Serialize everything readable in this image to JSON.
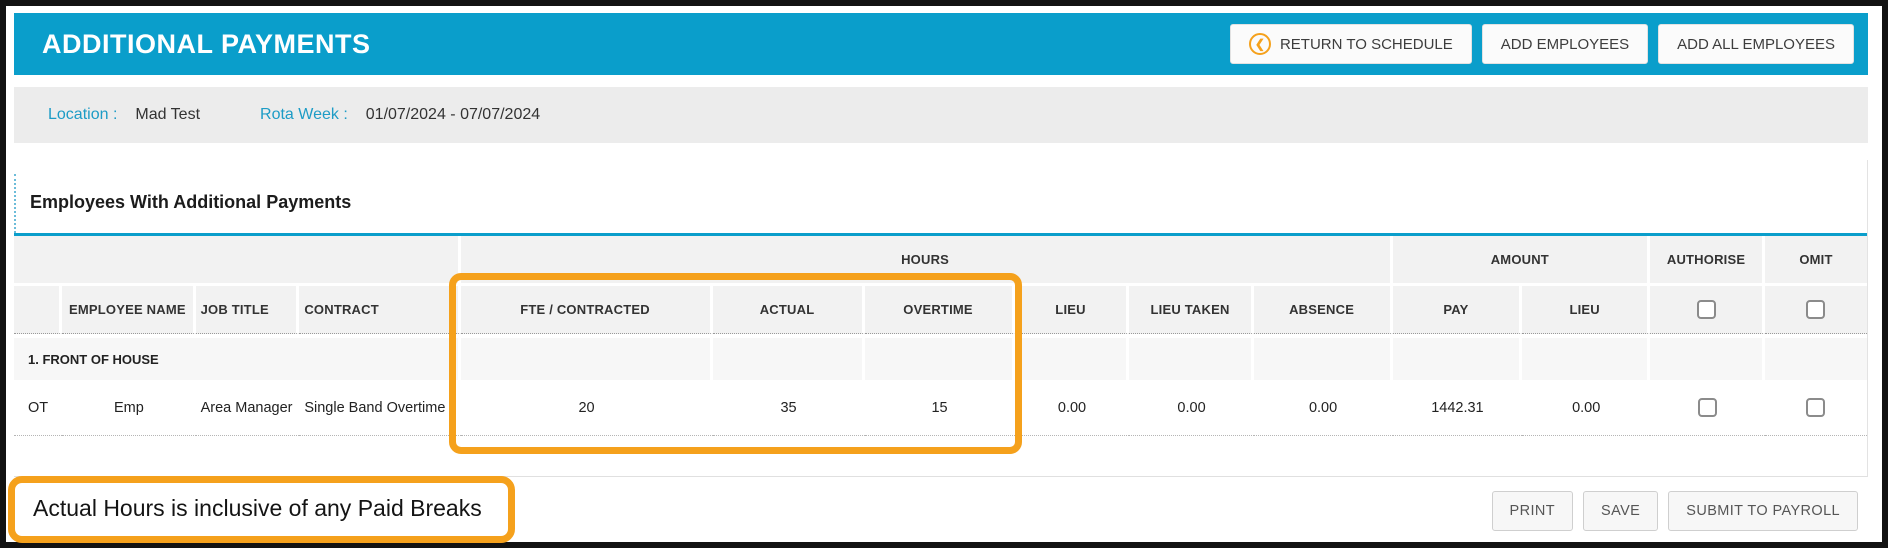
{
  "header": {
    "title": "ADDITIONAL PAYMENTS",
    "return_icon": "❮",
    "buttons": {
      "return_to_schedule": "RETURN TO SCHEDULE",
      "add_employees": "ADD EMPLOYEES",
      "add_all_employees": "ADD ALL EMPLOYEES"
    }
  },
  "meta": {
    "location_label": "Location :",
    "location_value": "Mad Test",
    "rota_week_label": "Rota Week :",
    "rota_week_value": "01/07/2024 - 07/07/2024"
  },
  "section": {
    "title": "Employees With Additional Payments"
  },
  "table": {
    "groups": {
      "hours": "HOURS",
      "amount": "AMOUNT",
      "authorise": "AUTHORISE",
      "omit": "OMIT"
    },
    "columns": [
      "EMPLOYEE NAME",
      "JOB TITLE",
      "CONTRACT",
      "FTE / CONTRACTED",
      "ACTUAL",
      "OVERTIME",
      "LIEU",
      "LIEU TAKEN",
      "ABSENCE",
      "PAY",
      "LIEU"
    ],
    "group_row_label": "1. FRONT OF HOUSE",
    "rows": [
      {
        "tag": "OT",
        "employee_name": "Emp",
        "job_title": "Area Manager",
        "contract": "Single Band Overtime",
        "fte_contracted": "20",
        "actual": "35",
        "overtime": "15",
        "lieu": "0.00",
        "lieu_taken": "0.00",
        "absence": "0.00",
        "pay": "1442.31",
        "amount_lieu": "0.00",
        "authorise_checked": false,
        "omit_checked": false
      }
    ]
  },
  "footer": {
    "note": "Actual Hours is inclusive of any Paid Breaks",
    "buttons": {
      "print": "PRINT",
      "save": "SAVE",
      "submit": "SUBMIT TO PAYROLL"
    }
  },
  "colors": {
    "accent_cyan": "#0a9ecb",
    "highlight_orange": "#f5a11c"
  }
}
